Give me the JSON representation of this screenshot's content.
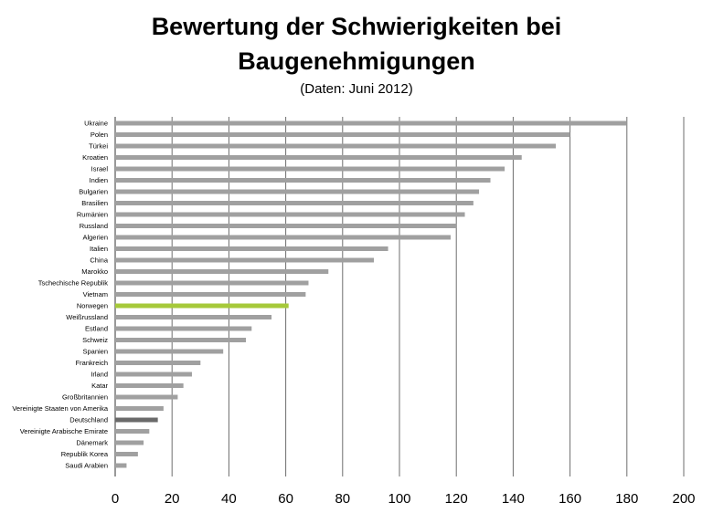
{
  "chart_data": {
    "type": "bar",
    "orientation": "horizontal",
    "title_line1": "Bewertung der Schwierigkeiten bei",
    "title_line2": "Baugenehmigungen",
    "subtitle": "(Daten: Juni 2012)",
    "xlim": [
      0,
      200
    ],
    "x_ticks": [
      "0",
      "20",
      "40",
      "60",
      "80",
      "100",
      "120",
      "140",
      "160",
      "180",
      "200"
    ],
    "grid": true,
    "colors": {
      "default": "#a0a0a0",
      "norwegen": "#a6c93a",
      "deutschland": "#6a6a6a"
    },
    "categories": [
      "Ukraine",
      "Polen",
      "Türkei",
      "Kroatien",
      "Israel",
      "Indien",
      "Bulgarien",
      "Brasilien",
      "Rumänien",
      "Russland",
      "Algerien",
      "Italien",
      "China",
      "Marokko",
      "Tschechische Republik",
      "Vietnam",
      "Norwegen",
      "Weißrussland",
      "Estland",
      "Schweiz",
      "Spanien",
      "Frankreich",
      "Irland",
      "Katar",
      "Großbritannien",
      "Vereinigte Staaten von Amerika",
      "Deutschland",
      "Vereinigte Arabische Emirate",
      "Dänemark",
      "Republik Korea",
      "Saudi Arabien"
    ],
    "values": [
      180,
      160,
      155,
      143,
      137,
      132,
      128,
      126,
      123,
      120,
      118,
      96,
      91,
      75,
      68,
      67,
      61,
      55,
      48,
      46,
      38,
      30,
      27,
      24,
      22,
      17,
      15,
      12,
      10,
      8,
      4
    ],
    "highlight": {
      "Norwegen": "norwegen",
      "Deutschland": "deutschland"
    }
  }
}
